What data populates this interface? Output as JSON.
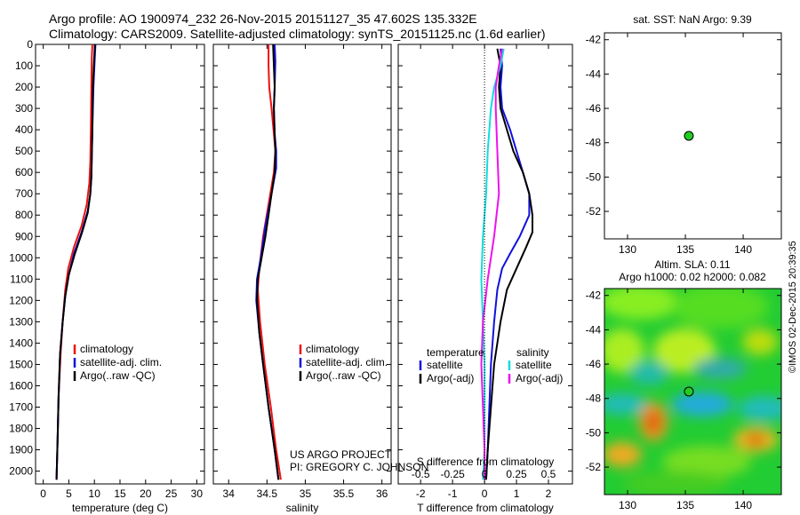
{
  "header": {
    "line1": "Argo profile: AO 1900974_232 26-Nov-2015 20151127_35 47.602S 135.332E",
    "line2": "Climatology: CARS2009. Satellite-adjusted climatology: synTS_20151125.nc (1.6d earlier)"
  },
  "credit": "©IMOS 02-Dec-2015 20:39:35",
  "project": {
    "line1": "US ARGO PROJECT",
    "line2": "PI: GREGORY C. JOHNSON"
  },
  "colors": {
    "climatology": "#ee1111",
    "satellite": "#1111dd",
    "argo": "#000000",
    "sal_satellite": "#11dddd",
    "sal_argo": "#ee11ee",
    "marker": "#22cc22"
  },
  "chart_data": [
    {
      "type": "line",
      "xlabel": "temperature (deg C)",
      "x_ticks": [
        "0",
        "5",
        "10",
        "15",
        "20",
        "25",
        "30"
      ],
      "x_range": [
        -1.5,
        31.5
      ],
      "y_ticks": [
        "0",
        "100",
        "200",
        "300",
        "400",
        "500",
        "600",
        "700",
        "800",
        "900",
        "1000",
        "1100",
        "1200",
        "1300",
        "1400",
        "1500",
        "1600",
        "1700",
        "1800",
        "1900",
        "2000"
      ],
      "y_range": [
        0,
        2060
      ],
      "legend": [
        "climatology",
        "satellite-adj. clim.",
        "Argo(..raw -QC)"
      ],
      "series": [
        {
          "name": "climatology",
          "color": "climatology",
          "points": [
            [
              9.6,
              0
            ],
            [
              9.5,
              60
            ],
            [
              9.4,
              200
            ],
            [
              9.3,
              400
            ],
            [
              9.2,
              550
            ],
            [
              9.0,
              650
            ],
            [
              8.5,
              750
            ],
            [
              7.5,
              850
            ],
            [
              6.0,
              950
            ],
            [
              4.9,
              1050
            ],
            [
              4.3,
              1150
            ],
            [
              3.8,
              1300
            ],
            [
              3.4,
              1450
            ],
            [
              3.0,
              1650
            ],
            [
              2.8,
              1850
            ],
            [
              2.6,
              2040
            ]
          ]
        },
        {
          "name": "satellite-adj. clim.",
          "color": "satellite",
          "points": [
            [
              10.2,
              0
            ],
            [
              10.0,
              100
            ],
            [
              9.8,
              200
            ],
            [
              9.6,
              400
            ],
            [
              9.5,
              520
            ],
            [
              9.4,
              620
            ],
            [
              9.2,
              700
            ],
            [
              8.7,
              780
            ],
            [
              7.5,
              880
            ],
            [
              6.0,
              980
            ],
            [
              5.0,
              1080
            ],
            [
              4.3,
              1180
            ],
            [
              3.8,
              1300
            ],
            [
              3.3,
              1450
            ],
            [
              3.0,
              1650
            ],
            [
              2.8,
              1850
            ],
            [
              2.6,
              2040
            ]
          ]
        },
        {
          "name": "Argo(..raw -QC)",
          "color": "argo",
          "points": [
            [
              10.1,
              0
            ],
            [
              9.9,
              100
            ],
            [
              9.7,
              200
            ],
            [
              9.6,
              400
            ],
            [
              9.5,
              520
            ],
            [
              9.4,
              620
            ],
            [
              9.2,
              700
            ],
            [
              8.7,
              790
            ],
            [
              7.6,
              880
            ],
            [
              6.2,
              980
            ],
            [
              5.0,
              1080
            ],
            [
              4.3,
              1180
            ],
            [
              3.8,
              1300
            ],
            [
              3.3,
              1450
            ],
            [
              3.0,
              1650
            ],
            [
              2.8,
              1850
            ],
            [
              2.6,
              2040
            ]
          ]
        }
      ]
    },
    {
      "type": "line",
      "xlabel": "salinity",
      "x_ticks": [
        "34",
        "34.5",
        "35",
        "35.5",
        "36"
      ],
      "x_range": [
        33.8,
        36.12
      ],
      "legend": [
        "climatology",
        "satellite-adj. clim.",
        "Argo(..raw -QC)"
      ],
      "series": [
        {
          "name": "climatology",
          "color": "climatology",
          "points": [
            [
              34.52,
              0
            ],
            [
              34.52,
              100
            ],
            [
              34.53,
              200
            ],
            [
              34.56,
              300
            ],
            [
              34.59,
              420
            ],
            [
              34.61,
              500
            ],
            [
              34.59,
              600
            ],
            [
              34.52,
              750
            ],
            [
              34.45,
              900
            ],
            [
              34.4,
              1050
            ],
            [
              34.38,
              1150
            ],
            [
              34.41,
              1300
            ],
            [
              34.47,
              1500
            ],
            [
              34.55,
              1700
            ],
            [
              34.62,
              1900
            ],
            [
              34.68,
              2040
            ]
          ]
        },
        {
          "name": "satellite-adj. clim.",
          "color": "satellite",
          "points": [
            [
              34.6,
              0
            ],
            [
              34.61,
              80
            ],
            [
              34.6,
              200
            ],
            [
              34.59,
              300
            ],
            [
              34.6,
              420
            ],
            [
              34.62,
              500
            ],
            [
              34.62,
              580
            ],
            [
              34.56,
              700
            ],
            [
              34.48,
              850
            ],
            [
              34.42,
              1000
            ],
            [
              34.37,
              1100
            ],
            [
              34.36,
              1200
            ],
            [
              34.4,
              1350
            ],
            [
              34.45,
              1500
            ],
            [
              34.52,
              1700
            ],
            [
              34.6,
              1900
            ],
            [
              34.65,
              2040
            ]
          ]
        },
        {
          "name": "Argo(..raw -QC)",
          "color": "argo",
          "points": [
            [
              34.58,
              0
            ],
            [
              34.59,
              100
            ],
            [
              34.6,
              200
            ],
            [
              34.59,
              300
            ],
            [
              34.6,
              420
            ],
            [
              34.61,
              500
            ],
            [
              34.6,
              600
            ],
            [
              34.56,
              700
            ],
            [
              34.52,
              800
            ],
            [
              34.48,
              900
            ],
            [
              34.43,
              1000
            ],
            [
              34.38,
              1100
            ],
            [
              34.37,
              1200
            ],
            [
              34.4,
              1350
            ],
            [
              34.45,
              1500
            ],
            [
              34.52,
              1700
            ],
            [
              34.6,
              1900
            ],
            [
              34.65,
              2040
            ]
          ]
        }
      ]
    },
    {
      "type": "line",
      "xlabel": "T difference from climatology",
      "x_ticks": [
        "-2",
        "-1",
        "0",
        "1",
        "2"
      ],
      "x_range": [
        -2.7,
        2.75
      ],
      "xlabel_top": "S difference from climatology",
      "x2_ticks": [
        "-0.5",
        "-0.25",
        "0",
        "0.25",
        "0.5"
      ],
      "legend_temperature_title": "temperature",
      "legend_salinity_title": "salinity",
      "legend": [
        "satellite",
        "Argo(-adj)",
        "satellite",
        "Argo(-adj)"
      ],
      "series": [
        {
          "name": "satellite",
          "color": "satellite",
          "points": [
            [
              0.5,
              20
            ],
            [
              0.55,
              100
            ],
            [
              0.5,
              200
            ],
            [
              0.55,
              300
            ],
            [
              0.8,
              400
            ],
            [
              1.0,
              500
            ],
            [
              1.2,
              600
            ],
            [
              1.4,
              700
            ],
            [
              1.4,
              800
            ],
            [
              1.1,
              900
            ],
            [
              0.8,
              980
            ],
            [
              0.55,
              1050
            ],
            [
              0.4,
              1150
            ],
            [
              0.3,
              1300
            ],
            [
              0.2,
              1500
            ],
            [
              0.15,
              1700
            ],
            [
              0.1,
              1900
            ],
            [
              0.05,
              2040
            ]
          ]
        },
        {
          "name": "Argo(-adj)",
          "color": "argo",
          "points": [
            [
              0.4,
              20
            ],
            [
              0.5,
              100
            ],
            [
              0.45,
              200
            ],
            [
              0.5,
              300
            ],
            [
              0.7,
              400
            ],
            [
              0.9,
              500
            ],
            [
              1.2,
              600
            ],
            [
              1.4,
              700
            ],
            [
              1.5,
              800
            ],
            [
              1.5,
              880
            ],
            [
              1.3,
              950
            ],
            [
              1.0,
              1050
            ],
            [
              0.7,
              1150
            ],
            [
              0.5,
              1300
            ],
            [
              0.3,
              1500
            ],
            [
              0.2,
              1700
            ],
            [
              0.1,
              1900
            ],
            [
              0.05,
              2040
            ]
          ]
        },
        {
          "name": "satellite",
          "color": "sal_satellite",
          "points": [
            [
              0.6,
              20
            ],
            [
              0.5,
              100
            ],
            [
              0.3,
              200
            ],
            [
              0.2,
              300
            ],
            [
              0.1,
              500
            ],
            [
              0.05,
              700
            ],
            [
              -0.05,
              900
            ],
            [
              -0.1,
              1100
            ],
            [
              -0.05,
              1300
            ],
            [
              0.0,
              1500
            ],
            [
              0.0,
              1700
            ],
            [
              0.0,
              1900
            ],
            [
              -0.05,
              2040
            ]
          ]
        },
        {
          "name": "Argo(-adj)",
          "color": "sal_argo",
          "points": [
            [
              0.55,
              20
            ],
            [
              0.45,
              100
            ],
            [
              0.35,
              200
            ],
            [
              0.35,
              300
            ],
            [
              0.4,
              500
            ],
            [
              0.45,
              700
            ],
            [
              0.3,
              900
            ],
            [
              0.1,
              1100
            ],
            [
              -0.05,
              1300
            ],
            [
              -0.1,
              1500
            ],
            [
              -0.05,
              1700
            ],
            [
              0.0,
              1900
            ],
            [
              0.0,
              2040
            ]
          ]
        }
      ]
    },
    {
      "type": "scatter",
      "title": "sat. SST: NaN Argo: 9.39",
      "x_ticks": [
        "130",
        "135",
        "140"
      ],
      "x_range": [
        128,
        143.3
      ],
      "y_ticks": [
        "-42",
        "-44",
        "-46",
        "-48",
        "-50",
        "-52"
      ],
      "y_range": [
        -53.6,
        -41.6
      ],
      "points": [
        {
          "x": 135.3,
          "y": -47.6
        }
      ]
    },
    {
      "type": "heatmap",
      "title": "Altim. SLA: 0.11",
      "subtitle": "Argo h1000: 0.02 h2000: 0.082",
      "x_ticks": [
        "130",
        "135",
        "140"
      ],
      "x_range": [
        128,
        143.3
      ],
      "y_ticks": [
        "-42",
        "-44",
        "-46",
        "-48",
        "-50",
        "-52"
      ],
      "y_range": [
        -53.6,
        -41.6
      ],
      "points": [
        {
          "x": 135.3,
          "y": -47.6
        }
      ]
    }
  ]
}
